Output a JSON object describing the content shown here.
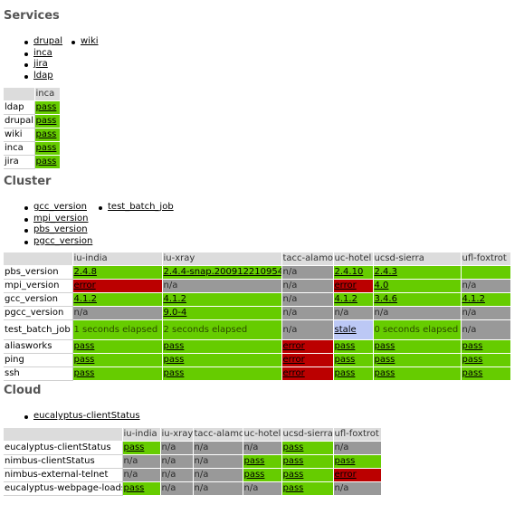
{
  "colors": {
    "pass": "#66cc00",
    "error": "#bb0000",
    "na": "#999999",
    "stale": "#bcc8f5",
    "header": "#dcdcdc"
  },
  "services": {
    "title": "Services",
    "links_col1": [
      "drupal",
      "inca",
      "jira",
      "ldap"
    ],
    "links_col2": [
      "wiki"
    ],
    "table": {
      "columns": [
        "inca"
      ],
      "rows": [
        {
          "label": "ldap",
          "cells": [
            {
              "text": "pass",
              "status": "pass",
              "link": true
            }
          ]
        },
        {
          "label": "drupal",
          "cells": [
            {
              "text": "pass",
              "status": "pass",
              "link": true
            }
          ]
        },
        {
          "label": "wiki",
          "cells": [
            {
              "text": "pass",
              "status": "pass",
              "link": true
            }
          ]
        },
        {
          "label": "inca",
          "cells": [
            {
              "text": "pass",
              "status": "pass",
              "link": true
            }
          ]
        },
        {
          "label": "jira",
          "cells": [
            {
              "text": "pass",
              "status": "pass",
              "link": true
            }
          ]
        }
      ]
    }
  },
  "cluster": {
    "title": "Cluster",
    "links_col1": [
      "gcc_version",
      "mpi_version",
      "pbs_version",
      "pgcc_version"
    ],
    "links_col2": [
      "test_batch_job"
    ],
    "table": {
      "columns": [
        "iu-india",
        "iu-xray",
        "tacc-alamo",
        "uc-hotel",
        "ucsd-sierra",
        "ufl-foxtrot"
      ],
      "rows": [
        {
          "label": "pbs_version",
          "cells": [
            {
              "text": "2.4.8",
              "status": "pass",
              "link": true
            },
            {
              "text": "2.4.4-snap.200912210954",
              "status": "pass",
              "link": true
            },
            {
              "text": "n/a",
              "status": "na",
              "link": false
            },
            {
              "text": "2.4.10",
              "status": "pass",
              "link": true
            },
            {
              "text": "2.4.3",
              "status": "pass",
              "link": true
            },
            {
              "text": "",
              "status": "pass",
              "link": false
            }
          ]
        },
        {
          "label": "mpi_version",
          "cells": [
            {
              "text": "error",
              "status": "error",
              "link": true
            },
            {
              "text": "n/a",
              "status": "na",
              "link": false
            },
            {
              "text": "n/a",
              "status": "na",
              "link": false
            },
            {
              "text": "error",
              "status": "error",
              "link": true
            },
            {
              "text": "4.0",
              "status": "pass",
              "link": true
            },
            {
              "text": "n/a",
              "status": "na",
              "link": false
            }
          ]
        },
        {
          "label": "gcc_version",
          "cells": [
            {
              "text": "4.1.2",
              "status": "pass",
              "link": true
            },
            {
              "text": "4.1.2",
              "status": "pass",
              "link": true
            },
            {
              "text": "n/a",
              "status": "na",
              "link": false
            },
            {
              "text": "4.1.2",
              "status": "pass",
              "link": true
            },
            {
              "text": "3.4.6",
              "status": "pass",
              "link": true
            },
            {
              "text": "4.1.2",
              "status": "pass",
              "link": true
            }
          ]
        },
        {
          "label": "pgcc_version",
          "cells": [
            {
              "text": "n/a",
              "status": "na",
              "link": false
            },
            {
              "text": "9.0-4",
              "status": "pass",
              "link": true
            },
            {
              "text": "n/a",
              "status": "na",
              "link": false
            },
            {
              "text": "n/a",
              "status": "na",
              "link": false
            },
            {
              "text": "n/a",
              "status": "na",
              "link": false
            },
            {
              "text": "n/a",
              "status": "na",
              "link": false
            }
          ]
        },
        {
          "label": "test_batch_job",
          "tall": true,
          "cells": [
            {
              "text": "1 seconds elapsed",
              "status": "elapsed",
              "link": false
            },
            {
              "text": "2 seconds elapsed",
              "status": "elapsed",
              "link": false
            },
            {
              "text": "n/a",
              "status": "na",
              "link": false
            },
            {
              "text": "stale",
              "status": "stale",
              "link": true
            },
            {
              "text": "0 seconds elapsed",
              "status": "elapsed",
              "link": false
            },
            {
              "text": "n/a",
              "status": "na",
              "link": false
            }
          ]
        },
        {
          "label": "aliasworks",
          "cells": [
            {
              "text": "pass",
              "status": "pass",
              "link": true
            },
            {
              "text": "pass",
              "status": "pass",
              "link": true
            },
            {
              "text": "error",
              "status": "error",
              "link": true
            },
            {
              "text": "pass",
              "status": "pass",
              "link": true
            },
            {
              "text": "pass",
              "status": "pass",
              "link": true
            },
            {
              "text": "pass",
              "status": "pass",
              "link": true
            }
          ]
        },
        {
          "label": "ping",
          "cells": [
            {
              "text": "pass",
              "status": "pass",
              "link": true
            },
            {
              "text": "pass",
              "status": "pass",
              "link": true
            },
            {
              "text": "error",
              "status": "error",
              "link": true
            },
            {
              "text": "pass",
              "status": "pass",
              "link": true
            },
            {
              "text": "pass",
              "status": "pass",
              "link": true
            },
            {
              "text": "pass",
              "status": "pass",
              "link": true
            }
          ]
        },
        {
          "label": "ssh",
          "cells": [
            {
              "text": "pass",
              "status": "pass",
              "link": true
            },
            {
              "text": "pass",
              "status": "pass",
              "link": true
            },
            {
              "text": "error",
              "status": "error",
              "link": true
            },
            {
              "text": "pass",
              "status": "pass",
              "link": true
            },
            {
              "text": "pass",
              "status": "pass",
              "link": true
            },
            {
              "text": "pass",
              "status": "pass",
              "link": true
            }
          ]
        }
      ]
    }
  },
  "cloud": {
    "title": "Cloud",
    "links_col1": [
      "eucalyptus-clientStatus"
    ],
    "table": {
      "columns": [
        "iu-india",
        "iu-xray",
        "tacc-alamo",
        "uc-hotel",
        "ucsd-sierra",
        "ufl-foxtrot"
      ],
      "rows": [
        {
          "label": "eucalyptus-clientStatus",
          "cells": [
            {
              "text": "pass",
              "status": "pass",
              "link": true
            },
            {
              "text": "n/a",
              "status": "na",
              "link": false
            },
            {
              "text": "n/a",
              "status": "na",
              "link": false
            },
            {
              "text": "n/a",
              "status": "na",
              "link": false
            },
            {
              "text": "pass",
              "status": "pass",
              "link": true
            },
            {
              "text": "n/a",
              "status": "na",
              "link": false
            }
          ]
        },
        {
          "label": "nimbus-clientStatus",
          "cells": [
            {
              "text": "n/a",
              "status": "na",
              "link": false
            },
            {
              "text": "n/a",
              "status": "na",
              "link": false
            },
            {
              "text": "n/a",
              "status": "na",
              "link": false
            },
            {
              "text": "pass",
              "status": "pass",
              "link": true
            },
            {
              "text": "pass",
              "status": "pass",
              "link": true
            },
            {
              "text": "pass",
              "status": "pass",
              "link": true
            }
          ]
        },
        {
          "label": "nimbus-external-telnet",
          "cells": [
            {
              "text": "n/a",
              "status": "na",
              "link": false
            },
            {
              "text": "n/a",
              "status": "na",
              "link": false
            },
            {
              "text": "n/a",
              "status": "na",
              "link": false
            },
            {
              "text": "pass",
              "status": "pass",
              "link": true
            },
            {
              "text": "pass",
              "status": "pass",
              "link": true
            },
            {
              "text": "error",
              "status": "error",
              "link": true
            }
          ]
        },
        {
          "label": "eucalyptus-webpage-loads",
          "cells": [
            {
              "text": "pass",
              "status": "pass",
              "link": true
            },
            {
              "text": "n/a",
              "status": "na",
              "link": false
            },
            {
              "text": "n/a",
              "status": "na",
              "link": false
            },
            {
              "text": "n/a",
              "status": "na",
              "link": false
            },
            {
              "text": "pass",
              "status": "pass",
              "link": true
            },
            {
              "text": "n/a",
              "status": "na",
              "link": false
            }
          ]
        }
      ]
    }
  }
}
